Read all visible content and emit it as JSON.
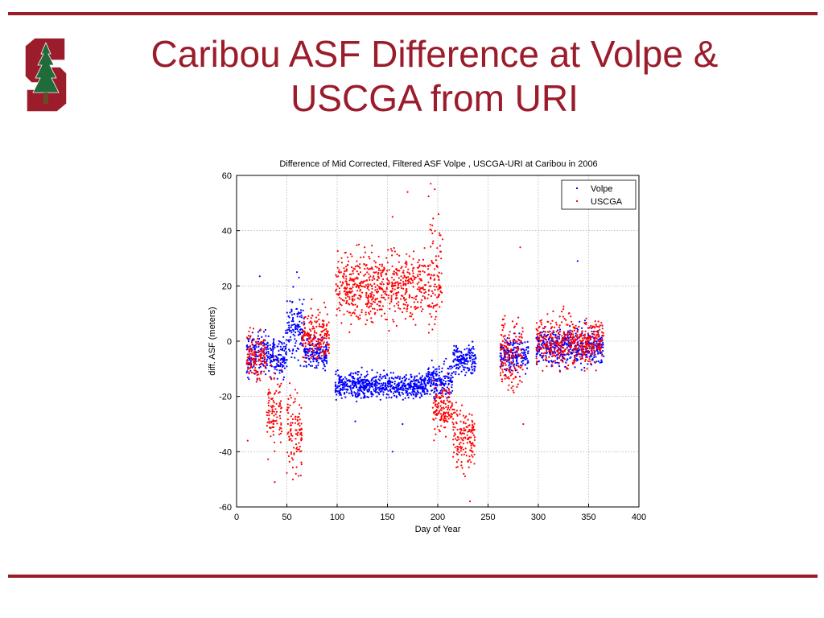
{
  "slide": {
    "title_line1": "Caribou ASF Difference at Volpe &",
    "title_line2": "USCGA from URI",
    "accent_color": "#9b1c2b",
    "logo_icon": "stanford-tree-logo-icon"
  },
  "chart_data": {
    "type": "scatter",
    "title": "Difference of Mid Corrected, Filtered ASF Volpe , USCGA-URI at Caribou in 2006",
    "xlabel": "Day of Year",
    "ylabel": "diff. ASF (meters)",
    "xlim": [
      0,
      400
    ],
    "ylim": [
      -60,
      60
    ],
    "xticks": [
      0,
      50,
      100,
      150,
      200,
      250,
      300,
      350,
      400
    ],
    "yticks": [
      -60,
      -40,
      -20,
      0,
      20,
      40,
      60
    ],
    "grid": true,
    "legend": "top-right",
    "series": [
      {
        "name": "Volpe",
        "color": "#0000ff",
        "clusters": [
          {
            "x": [
              10,
              50
            ],
            "y_center": -5,
            "spread": 7
          },
          {
            "x": [
              50,
              68
            ],
            "y_center": 5,
            "spread": 10
          },
          {
            "x": [
              68,
              90
            ],
            "y_center": -5,
            "spread": 5
          },
          {
            "x": [
              98,
              190
            ],
            "y_center": -16,
            "spread": 4
          },
          {
            "x": [
              190,
              215
            ],
            "y_center": -14,
            "spread": 5
          },
          {
            "x": [
              215,
              238
            ],
            "y_center": -7,
            "spread": 5
          },
          {
            "x": [
              262,
              290
            ],
            "y_center": -5,
            "spread": 5
          },
          {
            "x": [
              298,
              365
            ],
            "y_center": -2,
            "spread": 6
          }
        ],
        "points": [
          [
            23,
            23.5
          ],
          [
            60,
            25
          ],
          [
            62,
            23
          ],
          [
            339,
            29
          ],
          [
            165,
            -30
          ],
          [
            118,
            -29
          ],
          [
            155,
            -40
          ]
        ]
      },
      {
        "name": "USCGA",
        "color": "#ff0000",
        "clusters": [
          {
            "x": [
              10,
              30
            ],
            "y_center": -5,
            "spread": 8
          },
          {
            "x": [
              30,
              45
            ],
            "y_center": -25,
            "spread": 14
          },
          {
            "x": [
              50,
              65
            ],
            "y_center": -33,
            "spread": 13
          },
          {
            "x": [
              65,
              92
            ],
            "y_center": 2,
            "spread": 8
          },
          {
            "x": [
              98,
              188
            ],
            "y_center": 20,
            "spread": 11
          },
          {
            "x": [
              190,
              205
            ],
            "y_center": 25,
            "spread": 17
          },
          {
            "x": [
              195,
              215
            ],
            "y_center": -25,
            "spread": 8
          },
          {
            "x": [
              215,
              237
            ],
            "y_center": -35,
            "spread": 10
          },
          {
            "x": [
              262,
              285
            ],
            "y_center": -5,
            "spread": 12
          },
          {
            "x": [
              298,
              365
            ],
            "y_center": 0,
            "spread": 8
          }
        ],
        "points": [
          [
            193,
            57
          ],
          [
            197,
            55
          ],
          [
            170,
            54
          ],
          [
            155,
            45
          ],
          [
            282,
            34
          ],
          [
            11,
            -36
          ],
          [
            232,
            -58
          ],
          [
            38,
            -51
          ],
          [
            56,
            -50
          ],
          [
            285,
            -30
          ],
          [
            12,
            2
          ]
        ]
      }
    ]
  }
}
